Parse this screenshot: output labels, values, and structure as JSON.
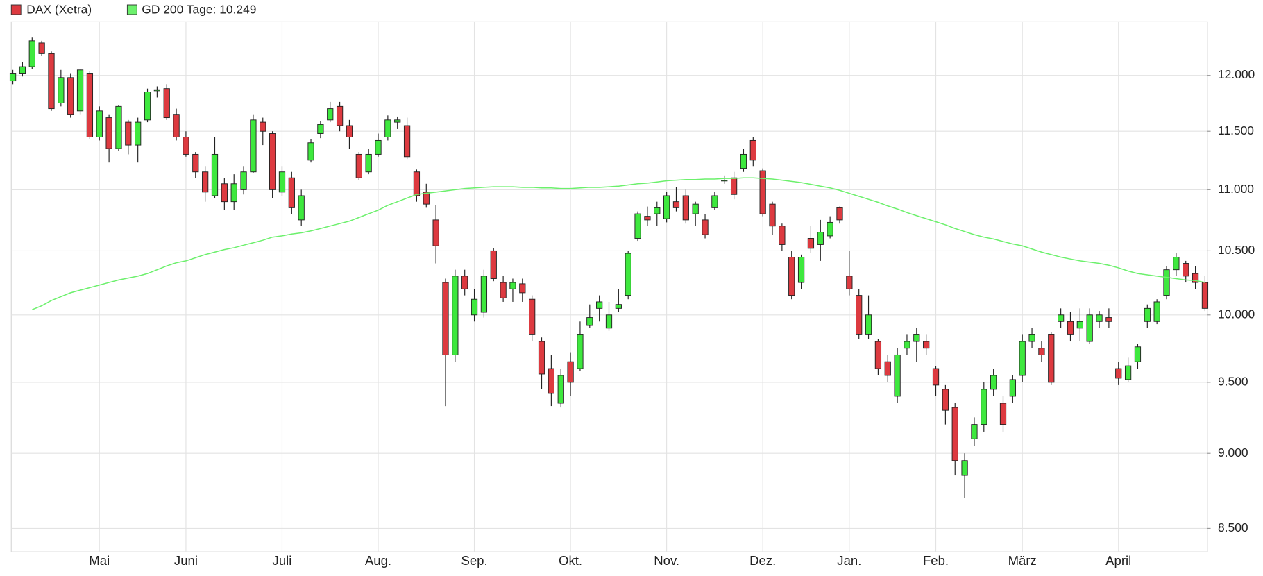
{
  "chart_data": {
    "type": "candlestick",
    "log_y": true,
    "grid": true,
    "ylim": [
      8350,
      12500
    ],
    "yticks": [
      {
        "value": 8500,
        "label": "8.500"
      },
      {
        "value": 9000,
        "label": "9.000"
      },
      {
        "value": 9500,
        "label": "9.500"
      },
      {
        "value": 10000,
        "label": "10.000"
      },
      {
        "value": 10500,
        "label": "10.500"
      },
      {
        "value": 11000,
        "label": "11.000"
      },
      {
        "value": 11500,
        "label": "11.500"
      },
      {
        "value": 12000,
        "label": "12.000"
      }
    ],
    "categories": [
      null,
      null,
      null,
      null,
      null,
      null,
      null,
      null,
      null,
      "Mai",
      null,
      null,
      null,
      null,
      null,
      null,
      null,
      null,
      "Juni",
      null,
      null,
      null,
      null,
      null,
      null,
      null,
      null,
      null,
      "Juli",
      null,
      null,
      null,
      null,
      null,
      null,
      null,
      null,
      null,
      "Aug.",
      null,
      null,
      null,
      null,
      null,
      null,
      null,
      null,
      null,
      "Sep.",
      null,
      null,
      null,
      null,
      null,
      null,
      null,
      null,
      null,
      "Okt.",
      null,
      null,
      null,
      null,
      null,
      null,
      null,
      null,
      null,
      "Nov.",
      null,
      null,
      null,
      null,
      null,
      null,
      null,
      null,
      null,
      "Dez.",
      null,
      null,
      null,
      null,
      null,
      null,
      null,
      null,
      "Jan.",
      null,
      null,
      null,
      null,
      null,
      null,
      null,
      null,
      "Feb.",
      null,
      null,
      null,
      null,
      null,
      null,
      null,
      null,
      "März",
      null,
      null,
      null,
      null,
      null,
      null,
      null,
      null,
      null,
      "April",
      null,
      null,
      null,
      null,
      null,
      null,
      null,
      null,
      null
    ],
    "series": [
      {
        "name": "DAX (Xetra)",
        "color": "#dd3a40",
        "up_color": "#3ee83e",
        "open": [
          11950,
          12020,
          12080,
          12300,
          12200,
          11750,
          11980,
          11680,
          12020,
          11450,
          11620,
          11350,
          11580,
          11380,
          11600,
          11860,
          11880,
          11650,
          11450,
          11300,
          11150,
          10950,
          11050,
          10900,
          11000,
          11150,
          11580,
          11480,
          10980,
          11100,
          10750,
          11250,
          11480,
          11600,
          11720,
          11550,
          11300,
          11150,
          11300,
          11450,
          11580,
          11550,
          11150,
          10980,
          10750,
          10250,
          9700,
          10300,
          10000,
          10020,
          10500,
          10250,
          10200,
          10240,
          10120,
          9800,
          9600,
          9350,
          9650,
          9600,
          9920,
          10050,
          9900,
          10050,
          10150,
          10600,
          10780,
          10800,
          10760,
          10900,
          10950,
          10800,
          10750,
          10850,
          11080,
          11100,
          11180,
          11420,
          11160,
          10880,
          10700,
          10450,
          10250,
          10600,
          10550,
          10620,
          10850,
          10300,
          10150,
          9850,
          9800,
          9650,
          9400,
          9750,
          9800,
          9800,
          9600,
          9450,
          9320,
          8850,
          9100,
          9200,
          9450,
          9350,
          9400,
          9550,
          9800,
          9750,
          9850,
          9950,
          9950,
          9900,
          9800,
          9950,
          9980,
          9600,
          9520,
          9650,
          9950,
          9950,
          10150,
          10350,
          10400,
          10320,
          10250
        ],
        "high": [
          12050,
          12120,
          12350,
          12320,
          12220,
          12050,
          12020,
          12060,
          12040,
          11720,
          11650,
          11730,
          11600,
          11620,
          11880,
          11900,
          11920,
          11700,
          11500,
          11320,
          11200,
          11450,
          11100,
          11130,
          11200,
          11650,
          11620,
          11500,
          11200,
          11150,
          11000,
          11430,
          11590,
          11760,
          11760,
          11600,
          11320,
          11350,
          11480,
          11640,
          11630,
          11620,
          11170,
          11050,
          10870,
          10280,
          10350,
          10350,
          10200,
          10350,
          10520,
          10300,
          10280,
          10280,
          10150,
          9830,
          9700,
          9600,
          9720,
          9950,
          10080,
          10150,
          10100,
          10200,
          10500,
          10820,
          10860,
          10900,
          10980,
          11020,
          11000,
          10900,
          10800,
          10980,
          11120,
          11150,
          11350,
          11450,
          11180,
          10900,
          10720,
          10500,
          10470,
          10700,
          10750,
          10780,
          10860,
          10500,
          10200,
          10150,
          9820,
          9700,
          9750,
          9850,
          9900,
          9850,
          9620,
          9480,
          9350,
          9000,
          9250,
          9500,
          9600,
          9400,
          9550,
          9850,
          9900,
          9800,
          9870,
          10050,
          10020,
          10050,
          10050,
          10030,
          10050,
          9650,
          9680,
          9780,
          10080,
          10120,
          10380,
          10480,
          10420,
          10380,
          10300
        ],
        "low": [
          11920,
          11990,
          12060,
          12180,
          11680,
          11720,
          11620,
          11650,
          11430,
          11420,
          11230,
          11330,
          11300,
          11230,
          11580,
          11800,
          11600,
          11420,
          11280,
          11100,
          10900,
          10930,
          10830,
          10830,
          10960,
          11140,
          11380,
          10930,
          10950,
          10800,
          10700,
          11230,
          11440,
          11580,
          11500,
          11350,
          11080,
          11130,
          11280,
          11420,
          11520,
          11260,
          10900,
          10850,
          10400,
          9330,
          9650,
          10150,
          9950,
          9980,
          10260,
          10100,
          10100,
          10100,
          9800,
          9450,
          9330,
          9320,
          9400,
          9580,
          9900,
          9950,
          9880,
          10020,
          10120,
          10580,
          10700,
          10700,
          10730,
          10820,
          10720,
          10700,
          10600,
          10830,
          11050,
          10920,
          11150,
          11200,
          10780,
          10630,
          10500,
          10120,
          10200,
          10480,
          10420,
          10600,
          10720,
          10150,
          9820,
          9820,
          9550,
          9500,
          9350,
          9700,
          9650,
          9700,
          9400,
          9200,
          8850,
          8700,
          9050,
          9150,
          9400,
          9150,
          9350,
          9500,
          9750,
          9650,
          9480,
          9900,
          9800,
          9800,
          9780,
          9900,
          9900,
          9480,
          9500,
          9600,
          9900,
          9930,
          10120,
          10300,
          10250,
          10200,
          10030
        ],
        "close": [
          12020,
          12080,
          12320,
          12200,
          11700,
          11980,
          11650,
          12050,
          11450,
          11680,
          11350,
          11720,
          11380,
          11580,
          11850,
          11870,
          11620,
          11450,
          11300,
          11150,
          10980,
          11300,
          10900,
          11050,
          11150,
          11600,
          11500,
          11000,
          11150,
          10850,
          10950,
          11400,
          11560,
          11700,
          11550,
          11450,
          11100,
          11300,
          11420,
          11600,
          11600,
          11280,
          10950,
          10880,
          10540,
          9700,
          10300,
          10200,
          10120,
          10300,
          10280,
          10130,
          10250,
          10170,
          9850,
          9560,
          9420,
          9550,
          9500,
          9850,
          9980,
          10100,
          10000,
          10080,
          10480,
          10800,
          10750,
          10850,
          10950,
          10850,
          10750,
          10880,
          10630,
          10950,
          11080,
          10960,
          11300,
          11250,
          10800,
          10700,
          10550,
          10150,
          10450,
          10520,
          10650,
          10730,
          10750,
          10200,
          9850,
          10000,
          9600,
          9550,
          9700,
          9800,
          9850,
          9750,
          9480,
          9300,
          8950,
          8950,
          9200,
          9450,
          9550,
          9200,
          9520,
          9800,
          9850,
          9700,
          9500,
          10000,
          9850,
          9950,
          10000,
          10000,
          9950,
          9530,
          9620,
          9760,
          10050,
          10100,
          10350,
          10450,
          10300,
          10250,
          10050
        ]
      },
      {
        "name": "GD 200 Tage: 10.249",
        "type": "line",
        "color": "#6cf06c",
        "values": [
          null,
          null,
          10040,
          10070,
          10110,
          10140,
          10170,
          10190,
          10210,
          10230,
          10250,
          10270,
          10285,
          10300,
          10320,
          10350,
          10380,
          10405,
          10420,
          10445,
          10470,
          10490,
          10510,
          10525,
          10545,
          10565,
          10585,
          10610,
          10620,
          10635,
          10645,
          10660,
          10680,
          10700,
          10720,
          10740,
          10770,
          10800,
          10830,
          10870,
          10900,
          10930,
          10960,
          10970,
          10980,
          10990,
          11000,
          11010,
          11015,
          11020,
          11025,
          11025,
          11025,
          11020,
          11020,
          11015,
          11015,
          11010,
          11010,
          11015,
          11020,
          11020,
          11025,
          11030,
          11040,
          11050,
          11055,
          11065,
          11075,
          11080,
          11085,
          11085,
          11090,
          11090,
          11095,
          11095,
          11100,
          11100,
          11095,
          11090,
          11080,
          11070,
          11060,
          11045,
          11030,
          11015,
          10995,
          10970,
          10945,
          10920,
          10895,
          10865,
          10840,
          10810,
          10785,
          10760,
          10735,
          10710,
          10680,
          10655,
          10630,
          10610,
          10595,
          10575,
          10555,
          10540,
          10515,
          10490,
          10470,
          10450,
          10435,
          10420,
          10410,
          10400,
          10385,
          10365,
          10340,
          10320,
          10310,
          10300,
          10290,
          10280,
          10270,
          10265,
          10250
        ]
      }
    ]
  }
}
